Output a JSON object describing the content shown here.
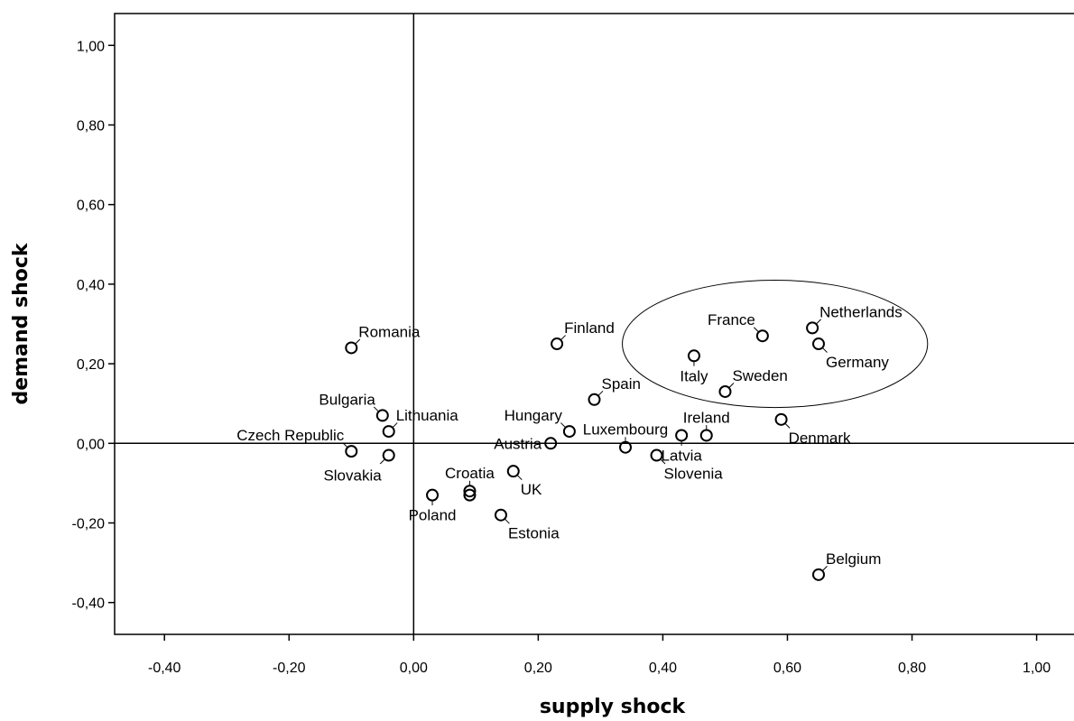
{
  "chart_data": {
    "type": "scatter",
    "title": "",
    "xlabel": "supply shock",
    "ylabel": "demand shock",
    "xlim": [
      -0.48,
      1.06
    ],
    "ylim": [
      -0.48,
      1.08
    ],
    "x_ticks": [
      -0.4,
      -0.2,
      0.0,
      0.2,
      0.4,
      0.6,
      0.8,
      1.0
    ],
    "y_ticks": [
      -0.4,
      -0.2,
      0.0,
      0.2,
      0.4,
      0.6,
      0.8,
      1.0
    ],
    "x_tick_labels": [
      "-0,40",
      "-0,20",
      "0,00",
      "0,20",
      "0,40",
      "0,60",
      "0,80",
      "1,00"
    ],
    "y_tick_labels": [
      "-0,40",
      "-0,20",
      "0,00",
      "0,20",
      "0,40",
      "0,60",
      "0,80",
      "1,00"
    ],
    "grid": false,
    "reference_lines": {
      "x": 0.0,
      "y": 0.0
    },
    "highlight_ellipse": {
      "center": [
        0.58,
        0.25
      ],
      "radii": [
        0.245,
        0.16
      ]
    },
    "points": [
      {
        "label": "Romania",
        "x": -0.1,
        "y": 0.24,
        "label_pos": "ne"
      },
      {
        "label": "Bulgaria",
        "x": -0.05,
        "y": 0.07,
        "label_pos": "nw"
      },
      {
        "label": "Lithuania",
        "x": -0.04,
        "y": 0.03,
        "label_pos": "ne"
      },
      {
        "label": "Czech Republic",
        "x": -0.1,
        "y": -0.02,
        "label_pos": "nw"
      },
      {
        "label": "Slovakia",
        "x": -0.04,
        "y": -0.03,
        "label_pos": "sw"
      },
      {
        "label": "Poland",
        "x": 0.03,
        "y": -0.13,
        "label_pos": "s"
      },
      {
        "label": "Croatia",
        "x": 0.09,
        "y": -0.12,
        "label_pos": "n"
      },
      {
        "label": "",
        "x": 0.09,
        "y": -0.13,
        "label_pos": "none"
      },
      {
        "label": "UK",
        "x": 0.16,
        "y": -0.07,
        "label_pos": "se"
      },
      {
        "label": "Estonia",
        "x": 0.14,
        "y": -0.18,
        "label_pos": "se"
      },
      {
        "label": "Austria",
        "x": 0.22,
        "y": 0.0,
        "label_pos": "w"
      },
      {
        "label": "Hungary",
        "x": 0.25,
        "y": 0.03,
        "label_pos": "nw"
      },
      {
        "label": "Finland",
        "x": 0.23,
        "y": 0.25,
        "label_pos": "ne"
      },
      {
        "label": "Spain",
        "x": 0.29,
        "y": 0.11,
        "label_pos": "ne"
      },
      {
        "label": "Luxembourg",
        "x": 0.34,
        "y": -0.01,
        "label_pos": "n"
      },
      {
        "label": "Slovenia",
        "x": 0.39,
        "y": -0.03,
        "label_pos": "se"
      },
      {
        "label": "Latvia",
        "x": 0.43,
        "y": 0.02,
        "label_pos": "s"
      },
      {
        "label": "Ireland",
        "x": 0.47,
        "y": 0.02,
        "label_pos": "n"
      },
      {
        "label": "Italy",
        "x": 0.45,
        "y": 0.22,
        "label_pos": "s"
      },
      {
        "label": "Sweden",
        "x": 0.5,
        "y": 0.13,
        "label_pos": "ne"
      },
      {
        "label": "France",
        "x": 0.56,
        "y": 0.27,
        "label_pos": "nw"
      },
      {
        "label": "Netherlands",
        "x": 0.64,
        "y": 0.29,
        "label_pos": "ne"
      },
      {
        "label": "Germany",
        "x": 0.65,
        "y": 0.25,
        "label_pos": "se"
      },
      {
        "label": "Denmark",
        "x": 0.59,
        "y": 0.06,
        "label_pos": "se"
      },
      {
        "label": "Belgium",
        "x": 0.65,
        "y": -0.33,
        "label_pos": "ne"
      }
    ]
  }
}
